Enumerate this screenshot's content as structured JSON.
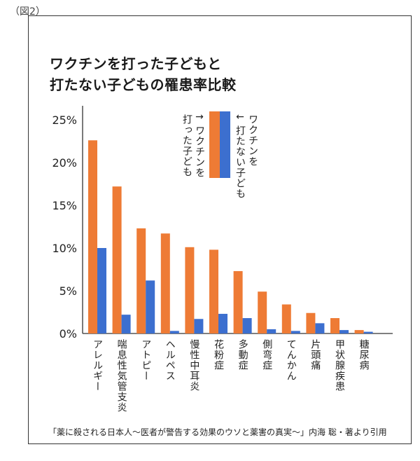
{
  "figure_label": "（図2）",
  "title_lines": [
    "ワクチンを打った子どもと",
    "打たない子どもの罹患率比較"
  ],
  "caption": "「薬に殺される日本人～医者が警告する効果のウソと薬害の真実～」内海 聡・著より引用",
  "legend": {
    "vaccinated_arrow": "→",
    "vaccinated": "ワクチンを打った子ども",
    "unvaccinated_arrow": "←",
    "unvaccinated": "ワクチンを打たない子ども"
  },
  "colors": {
    "vaccinated": "#ee7b35",
    "unvaccinated": "#3c6fcf"
  },
  "chart_data": {
    "type": "bar",
    "title": "ワクチンを打った子どもと打たない子どもの罹患率比較",
    "categories": [
      "アレルギー",
      "喘息性気管支炎",
      "アトピー",
      "ヘルペス",
      "慢性中耳炎",
      "花粉症",
      "多動症",
      "側弯症",
      "てんかん",
      "片頭痛",
      "甲状腺疾患",
      "糖尿病"
    ],
    "series": [
      {
        "name": "ワクチンを打った子ども",
        "values": [
          22.6,
          17.2,
          12.3,
          11.7,
          10.1,
          9.8,
          7.3,
          4.9,
          3.4,
          2.4,
          1.8,
          0.4
        ]
      },
      {
        "name": "ワクチンを打たない子ども",
        "values": [
          10.0,
          2.2,
          6.2,
          0.3,
          1.7,
          2.3,
          1.8,
          0.5,
          0.3,
          1.2,
          0.4,
          0.2
        ]
      }
    ],
    "ylim": [
      0,
      25
    ],
    "yticks": [
      "0%",
      "5%",
      "10%",
      "15%",
      "20%",
      "25%"
    ],
    "grid": false,
    "legend_position": "top-right"
  }
}
